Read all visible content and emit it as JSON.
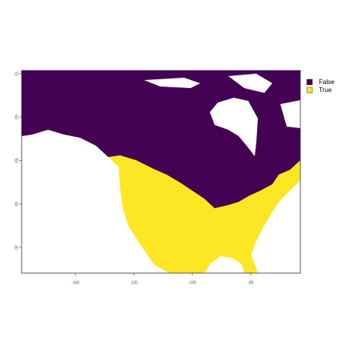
{
  "chart_data": {
    "type": "raster-map",
    "legend": [
      {
        "label": "False",
        "color": "#440154"
      },
      {
        "label": "True",
        "color": "#FDE725"
      }
    ],
    "xlim": [
      -158.4,
      -63
    ],
    "xticks": [
      -140,
      -120,
      -100,
      -80
    ],
    "ylim": [
      24.1,
      70.7
    ],
    "yticks": [
      30,
      40,
      50,
      60,
      70
    ]
  }
}
